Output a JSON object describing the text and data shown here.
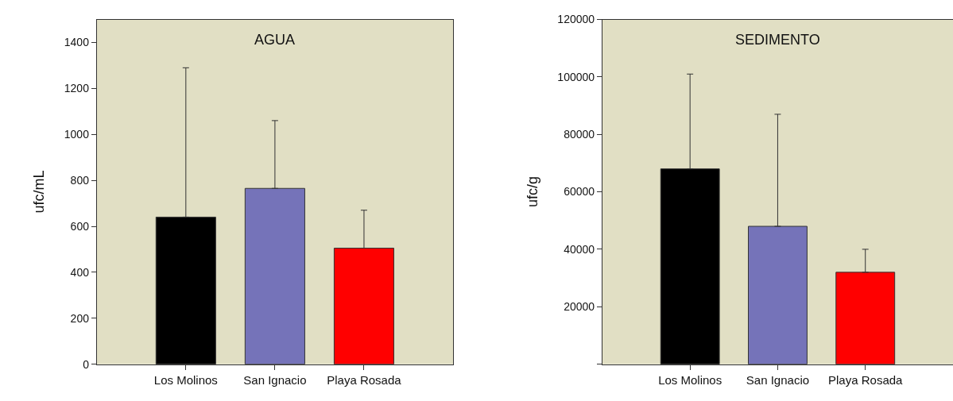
{
  "chart_data": [
    {
      "type": "bar",
      "title": "AGUA",
      "ylabel": "ufc/mL",
      "categories": [
        "Los Molinos",
        "San Ignacio",
        "Playa Rosada"
      ],
      "values": [
        640,
        765,
        505
      ],
      "colors": [
        "#000000",
        "#7573b9",
        "#ff0000"
      ],
      "errors": [
        [
          640,
          1290
        ],
        [
          765,
          1060
        ],
        [
          505,
          670
        ]
      ],
      "ylim": [
        0,
        1500
      ],
      "yticks": [
        0,
        200,
        400,
        600,
        800,
        1000,
        1200,
        1400
      ],
      "grid": false
    },
    {
      "type": "bar",
      "title": "SEDIMENTO",
      "ylabel": "ufc/g",
      "categories": [
        "Los Molinos",
        "San Ignacio",
        "Playa Rosada"
      ],
      "values": [
        68000,
        48000,
        32000
      ],
      "colors": [
        "#000000",
        "#7573b9",
        "#ff0000"
      ],
      "errors": [
        [
          68000,
          101000
        ],
        [
          48000,
          87000
        ],
        [
          32000,
          40000
        ]
      ],
      "ylim": [
        0,
        120000
      ],
      "yticks": [
        {
          "value": 0,
          "label": null
        },
        20000,
        40000,
        60000,
        80000,
        100000,
        120000
      ],
      "grid": false
    }
  ]
}
